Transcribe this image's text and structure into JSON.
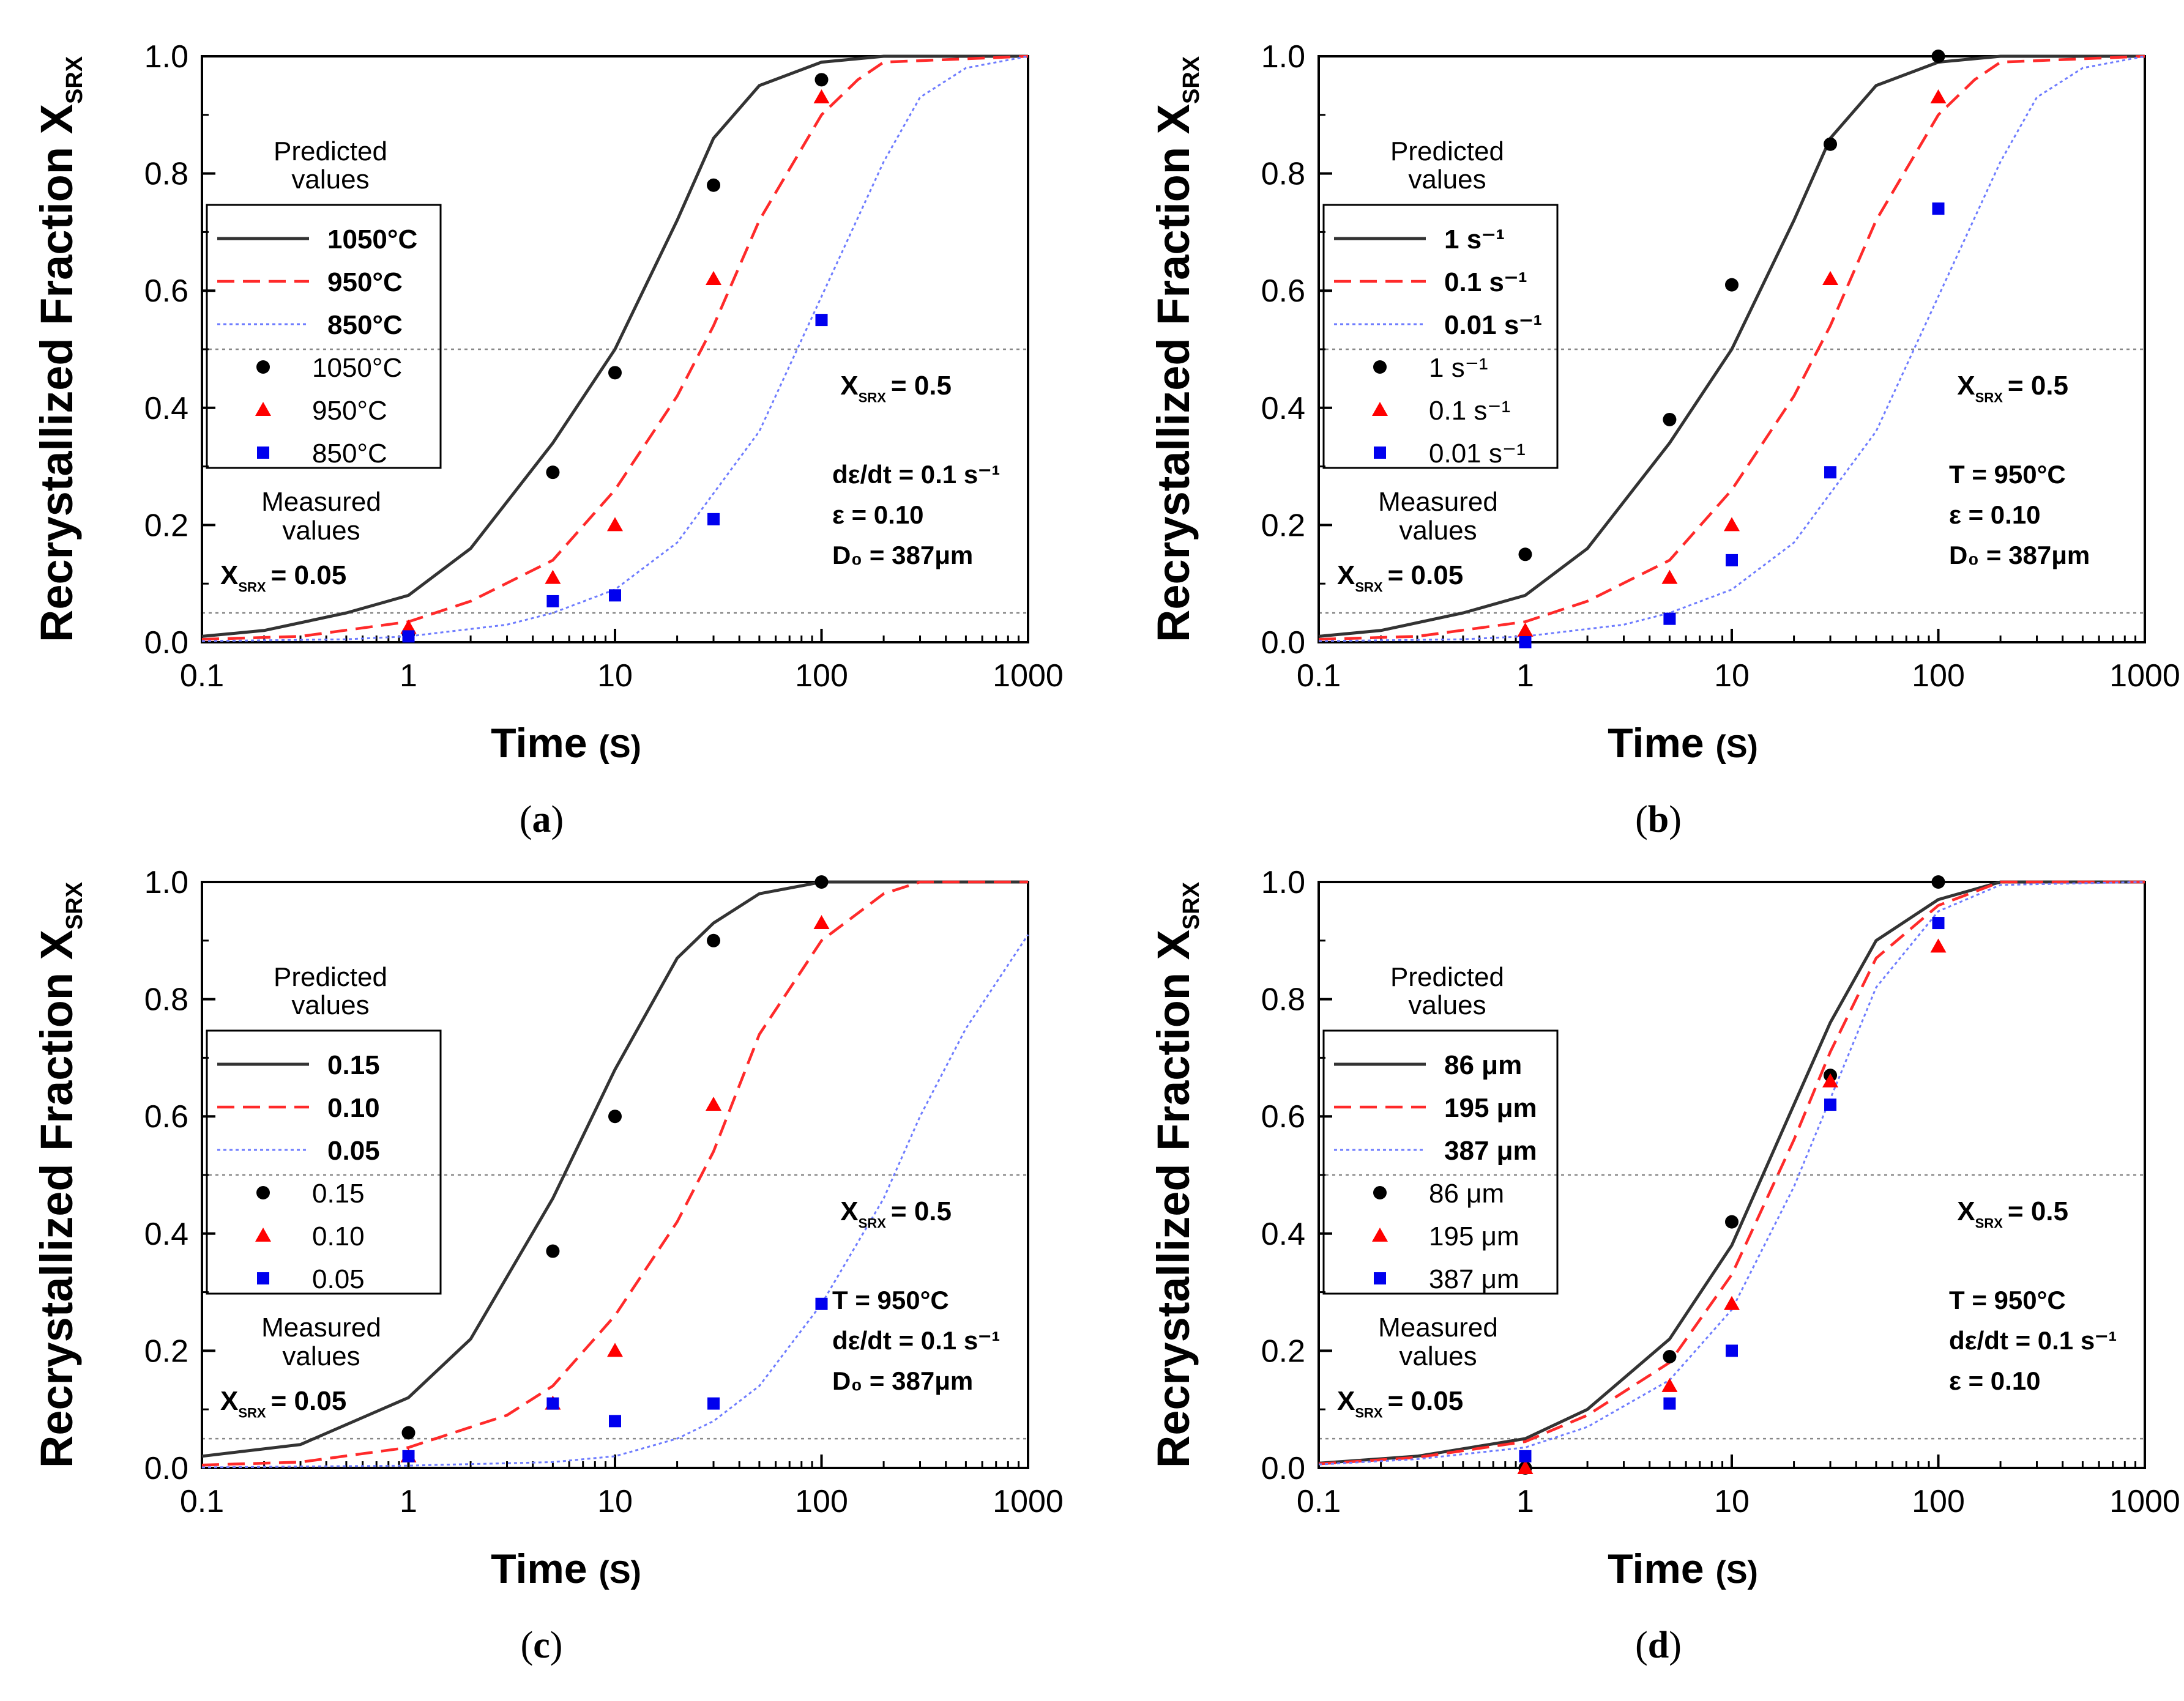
{
  "figure": {
    "common": {
      "ylabel": "Recrystallized Fraction",
      "ylabel_symbol": "X",
      "ylabel_symbol_sub": "SRX",
      "xlabel": "Time",
      "xlabel_unit": "(S)",
      "predicted_label_line1": "Predicted",
      "predicted_label_line2": "values",
      "measured_label_line1": "Measured",
      "measured_label_line2": "values",
      "ref_low_prefix": "X",
      "ref_low_sub": "SRX",
      "ref_low_value": "= 0.05",
      "ref_mid_prefix": "X",
      "ref_mid_sub": "SRX",
      "ref_mid_value": "= 0.5",
      "x_ticks": [
        "0.1",
        "1",
        "10",
        "100",
        "1000"
      ],
      "y_ticks": [
        "0.0",
        "0.2",
        "0.4",
        "0.6",
        "0.8",
        "1.0"
      ]
    },
    "colors": {
      "series1": "#333333",
      "series2": "#ff2a2a",
      "series3": "#6e7cff",
      "marker1": "#000000",
      "marker2": "#ff0000",
      "marker3": "#0000ee"
    }
  },
  "chart_data": [
    {
      "type": "line",
      "panel": "a",
      "caption": "a",
      "xscale": "log",
      "xlim": [
        0.1,
        1000
      ],
      "ylim": [
        0,
        1.0
      ],
      "legend_predicted": [
        "1050°C",
        "950°C",
        "850°C"
      ],
      "legend_measured": [
        "1050°C",
        "950°C",
        "850°C"
      ],
      "conditions": [
        "dε/dt = 0.1 s⁻¹",
        "ε = 0.10",
        "D₀ = 387μm"
      ],
      "series": [
        {
          "name": "1050°C predicted",
          "x": [
            0.1,
            0.2,
            0.5,
            1,
            2,
            5,
            10,
            20,
            30,
            50,
            100,
            200,
            1000
          ],
          "values": [
            0.01,
            0.02,
            0.05,
            0.08,
            0.16,
            0.34,
            0.5,
            0.72,
            0.86,
            0.95,
            0.99,
            1.0,
            1.0
          ]
        },
        {
          "name": "950°C predicted",
          "x": [
            0.1,
            0.3,
            1,
            2,
            5,
            10,
            20,
            30,
            50,
            100,
            150,
            200,
            1000
          ],
          "values": [
            0.005,
            0.01,
            0.035,
            0.07,
            0.14,
            0.26,
            0.42,
            0.54,
            0.72,
            0.9,
            0.96,
            0.99,
            1.0
          ]
        },
        {
          "name": "850°C predicted",
          "x": [
            0.1,
            0.5,
            1,
            3,
            5,
            10,
            20,
            50,
            100,
            200,
            300,
            500,
            1000
          ],
          "values": [
            0.002,
            0.005,
            0.01,
            0.03,
            0.05,
            0.09,
            0.17,
            0.36,
            0.59,
            0.82,
            0.93,
            0.98,
            1.0
          ]
        },
        {
          "name": "1050°C measured",
          "x": [
            1,
            5,
            10,
            30,
            100
          ],
          "values": [
            0.015,
            0.29,
            0.46,
            0.78,
            0.96
          ]
        },
        {
          "name": "950°C measured",
          "x": [
            1,
            5,
            10,
            30,
            100
          ],
          "values": [
            0.025,
            0.11,
            0.2,
            0.62,
            0.93
          ]
        },
        {
          "name": "850°C measured",
          "x": [
            1,
            5,
            10,
            30,
            100
          ],
          "values": [
            0.01,
            0.07,
            0.08,
            0.21,
            0.55
          ]
        }
      ]
    },
    {
      "type": "line",
      "panel": "b",
      "caption": "b",
      "xscale": "log",
      "xlim": [
        0.1,
        1000
      ],
      "ylim": [
        0,
        1.0
      ],
      "legend_predicted": [
        "1 s⁻¹",
        "0.1 s⁻¹",
        "0.01 s⁻¹"
      ],
      "legend_measured": [
        "1 s⁻¹",
        "0.1 s⁻¹",
        "0.01 s⁻¹"
      ],
      "conditions": [
        "T = 950°C",
        "ε = 0.10",
        "D₀ = 387μm"
      ],
      "series": [
        {
          "name": "1 s⁻¹ predicted",
          "x": [
            0.1,
            0.2,
            0.5,
            1,
            2,
            5,
            10,
            20,
            30,
            50,
            100,
            200,
            1000
          ],
          "values": [
            0.01,
            0.02,
            0.05,
            0.08,
            0.16,
            0.34,
            0.5,
            0.72,
            0.86,
            0.95,
            0.99,
            1.0,
            1.0
          ]
        },
        {
          "name": "0.1 s⁻¹ predicted",
          "x": [
            0.1,
            0.3,
            1,
            2,
            5,
            10,
            20,
            30,
            50,
            100,
            150,
            200,
            1000
          ],
          "values": [
            0.005,
            0.01,
            0.035,
            0.07,
            0.14,
            0.26,
            0.42,
            0.54,
            0.72,
            0.9,
            0.96,
            0.99,
            1.0
          ]
        },
        {
          "name": "0.01 s⁻¹ predicted",
          "x": [
            0.1,
            0.5,
            1,
            3,
            5,
            10,
            20,
            50,
            100,
            200,
            300,
            500,
            1000
          ],
          "values": [
            0.002,
            0.005,
            0.01,
            0.03,
            0.05,
            0.09,
            0.17,
            0.36,
            0.59,
            0.82,
            0.93,
            0.98,
            1.0
          ]
        },
        {
          "name": "1 s⁻¹ measured",
          "x": [
            1,
            5,
            10,
            30,
            100
          ],
          "values": [
            0.15,
            0.38,
            0.61,
            0.85,
            1.0
          ]
        },
        {
          "name": "0.1 s⁻¹ measured",
          "x": [
            1,
            5,
            10,
            30,
            100
          ],
          "values": [
            0.02,
            0.11,
            0.2,
            0.62,
            0.93
          ]
        },
        {
          "name": "0.01 s⁻¹ measured",
          "x": [
            1,
            5,
            10,
            30,
            100
          ],
          "values": [
            0.0,
            0.04,
            0.14,
            0.29,
            0.74
          ]
        }
      ]
    },
    {
      "type": "line",
      "panel": "c",
      "caption": "c",
      "xscale": "log",
      "xlim": [
        0.1,
        1000
      ],
      "ylim": [
        0,
        1.0
      ],
      "legend_predicted": [
        "0.15",
        "0.10",
        "0.05"
      ],
      "legend_measured": [
        "0.15",
        "0.10",
        "0.05"
      ],
      "conditions": [
        "T = 950°C",
        "dε/dt = 0.1 s⁻¹",
        "D₀ = 387μm"
      ],
      "series": [
        {
          "name": "0.15 predicted",
          "x": [
            0.1,
            0.3,
            1,
            2,
            5,
            10,
            20,
            30,
            50,
            100,
            200,
            1000
          ],
          "values": [
            0.02,
            0.04,
            0.12,
            0.22,
            0.46,
            0.68,
            0.87,
            0.93,
            0.98,
            1.0,
            1.0,
            1.0
          ]
        },
        {
          "name": "0.10 predicted",
          "x": [
            0.1,
            0.3,
            1,
            3,
            5,
            10,
            20,
            30,
            50,
            100,
            200,
            300,
            1000
          ],
          "values": [
            0.005,
            0.01,
            0.035,
            0.09,
            0.14,
            0.26,
            0.42,
            0.54,
            0.74,
            0.9,
            0.98,
            1.0,
            1.0
          ]
        },
        {
          "name": "0.05 predicted",
          "x": [
            0.1,
            1,
            5,
            10,
            20,
            30,
            50,
            100,
            200,
            300,
            500,
            1000
          ],
          "values": [
            0.001,
            0.004,
            0.01,
            0.02,
            0.05,
            0.08,
            0.14,
            0.28,
            0.46,
            0.6,
            0.75,
            0.91
          ]
        },
        {
          "name": "0.15 measured",
          "x": [
            1,
            5,
            10,
            30,
            100
          ],
          "values": [
            0.06,
            0.37,
            0.6,
            0.9,
            1.0
          ]
        },
        {
          "name": "0.10 measured",
          "x": [
            1,
            5,
            10,
            30,
            100
          ],
          "values": [
            0.02,
            0.11,
            0.2,
            0.62,
            0.93
          ]
        },
        {
          "name": "0.05 measured",
          "x": [
            1,
            5,
            10,
            30,
            100
          ],
          "values": [
            0.02,
            0.11,
            0.08,
            0.11,
            0.28
          ]
        }
      ]
    },
    {
      "type": "line",
      "panel": "d",
      "caption": "d",
      "xscale": "log",
      "xlim": [
        0.1,
        1000
      ],
      "ylim": [
        0,
        1.0
      ],
      "legend_predicted": [
        "86 μm",
        "195 μm",
        "387 μm"
      ],
      "legend_measured": [
        "86 μm",
        "195 μm",
        "387 μm"
      ],
      "conditions": [
        "T = 950°C",
        "dε/dt = 0.1 s⁻¹",
        "ε = 0.10"
      ],
      "series": [
        {
          "name": "86 μm predicted",
          "x": [
            0.1,
            0.3,
            1,
            2,
            5,
            10,
            20,
            30,
            50,
            100,
            200,
            1000
          ],
          "values": [
            0.008,
            0.02,
            0.05,
            0.1,
            0.22,
            0.38,
            0.62,
            0.76,
            0.9,
            0.97,
            1.0,
            1.0
          ]
        },
        {
          "name": "195 μm predicted",
          "x": [
            0.1,
            0.3,
            1,
            2,
            5,
            10,
            20,
            30,
            50,
            100,
            200,
            1000
          ],
          "values": [
            0.007,
            0.018,
            0.045,
            0.09,
            0.18,
            0.33,
            0.56,
            0.71,
            0.87,
            0.96,
            1.0,
            1.0
          ]
        },
        {
          "name": "387 μm predicted",
          "x": [
            0.1,
            0.3,
            1,
            2,
            5,
            10,
            20,
            30,
            50,
            100,
            200,
            1000
          ],
          "values": [
            0.006,
            0.015,
            0.035,
            0.07,
            0.15,
            0.27,
            0.48,
            0.63,
            0.82,
            0.95,
            0.995,
            1.0
          ]
        },
        {
          "name": "86 μm measured",
          "x": [
            1,
            5,
            10,
            30,
            100
          ],
          "values": [
            0.0,
            0.19,
            0.42,
            0.67,
            1.0
          ]
        },
        {
          "name": "195 μm measured",
          "x": [
            1,
            5,
            10,
            30,
            100
          ],
          "values": [
            0.0,
            0.14,
            0.28,
            0.66,
            0.89
          ]
        },
        {
          "name": "387 μm measured",
          "x": [
            1,
            5,
            10,
            30,
            100
          ],
          "values": [
            0.02,
            0.11,
            0.2,
            0.62,
            0.93
          ]
        }
      ]
    }
  ]
}
